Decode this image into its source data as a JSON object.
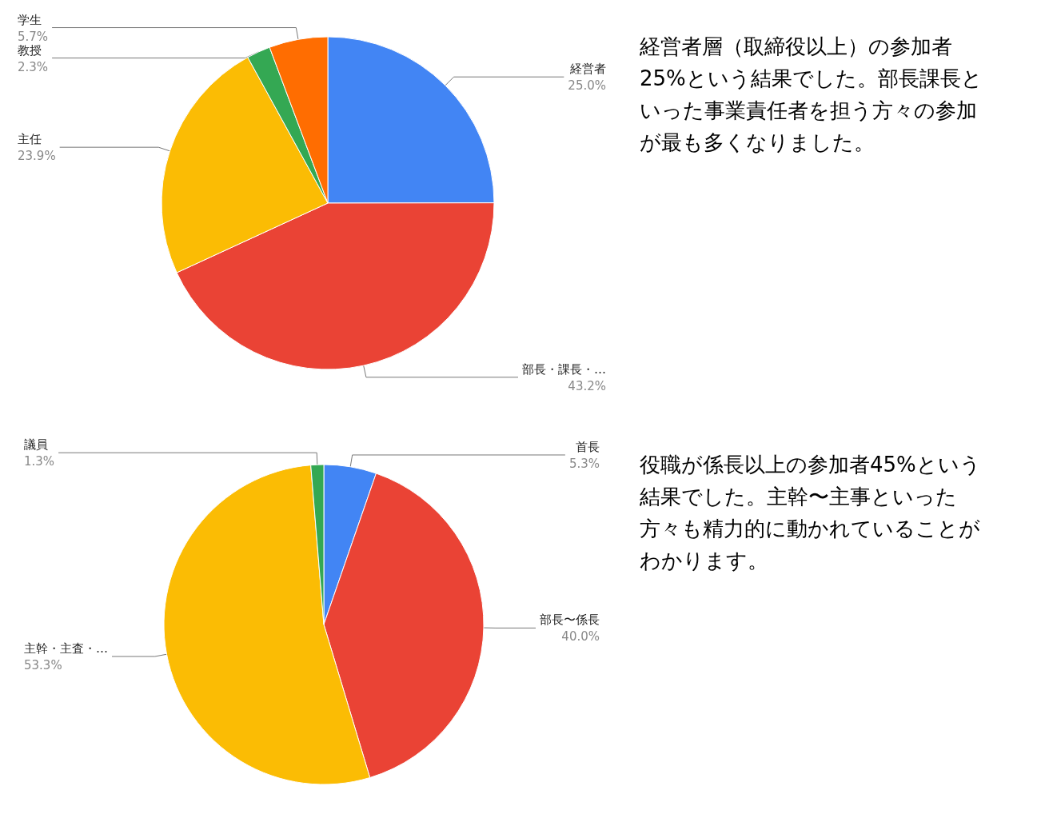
{
  "chart_data": [
    {
      "type": "pie",
      "categories": [
        "経営者",
        "部長・課長・…",
        "主任",
        "教授",
        "学生"
      ],
      "values": [
        25.0,
        43.2,
        23.9,
        2.3,
        5.7
      ],
      "value_labels": [
        "25.0%",
        "43.2%",
        "23.9%",
        "2.3%",
        "5.7%"
      ],
      "colors": [
        "#4285f4",
        "#ea4335",
        "#fbbc04",
        "#34a853",
        "#ff6d01"
      ],
      "annotations": [
        "経営者層（取締役以上）の参加者25%という結果でした。部長課長といった事業責任者を担う方々の参加が最も多くなりました。"
      ]
    },
    {
      "type": "pie",
      "categories": [
        "首長",
        "部長〜係長",
        "主幹・主査・…",
        "議員"
      ],
      "values": [
        5.3,
        40.0,
        53.3,
        1.3
      ],
      "value_labels": [
        "5.3%",
        "40.0%",
        "53.3%",
        "1.3%"
      ],
      "colors": [
        "#4285f4",
        "#ea4335",
        "#fbbc04",
        "#34a853"
      ],
      "annotations": [
        "役職が係長以上の参加者45%という結果でした。主幹〜主事といった方々も精力的に動かれていることがわかります。"
      ]
    }
  ]
}
